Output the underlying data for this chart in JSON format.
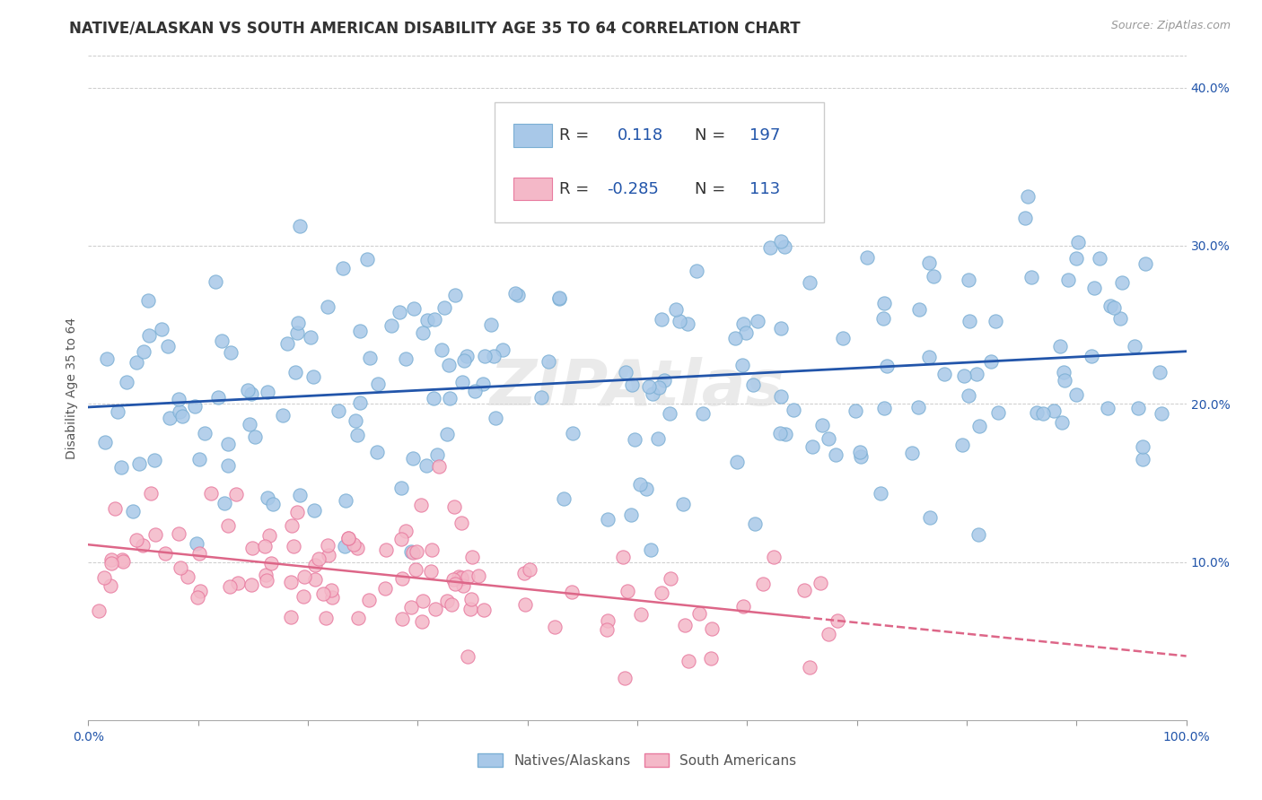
{
  "title": "NATIVE/ALASKAN VS SOUTH AMERICAN DISABILITY AGE 35 TO 64 CORRELATION CHART",
  "source": "Source: ZipAtlas.com",
  "ylabel": "Disability Age 35 to 64",
  "xlim": [
    0,
    100
  ],
  "ylim": [
    0,
    42
  ],
  "ytick_values": [
    10,
    20,
    30,
    40
  ],
  "blue_R": 0.118,
  "blue_N": 197,
  "pink_R": -0.285,
  "pink_N": 113,
  "blue_color": "#a8c8e8",
  "blue_edge_color": "#7bafd4",
  "pink_color": "#f4b8c8",
  "pink_edge_color": "#e87a9f",
  "blue_line_color": "#2255aa",
  "pink_line_color": "#dd6688",
  "watermark": "ZIPAtlas",
  "grid_color": "#cccccc",
  "background_color": "#ffffff",
  "title_fontsize": 12,
  "axis_label_fontsize": 10,
  "tick_fontsize": 10,
  "legend_fontsize": 13,
  "blue_label": "Natives/Alaskans",
  "pink_label": "South Americans"
}
